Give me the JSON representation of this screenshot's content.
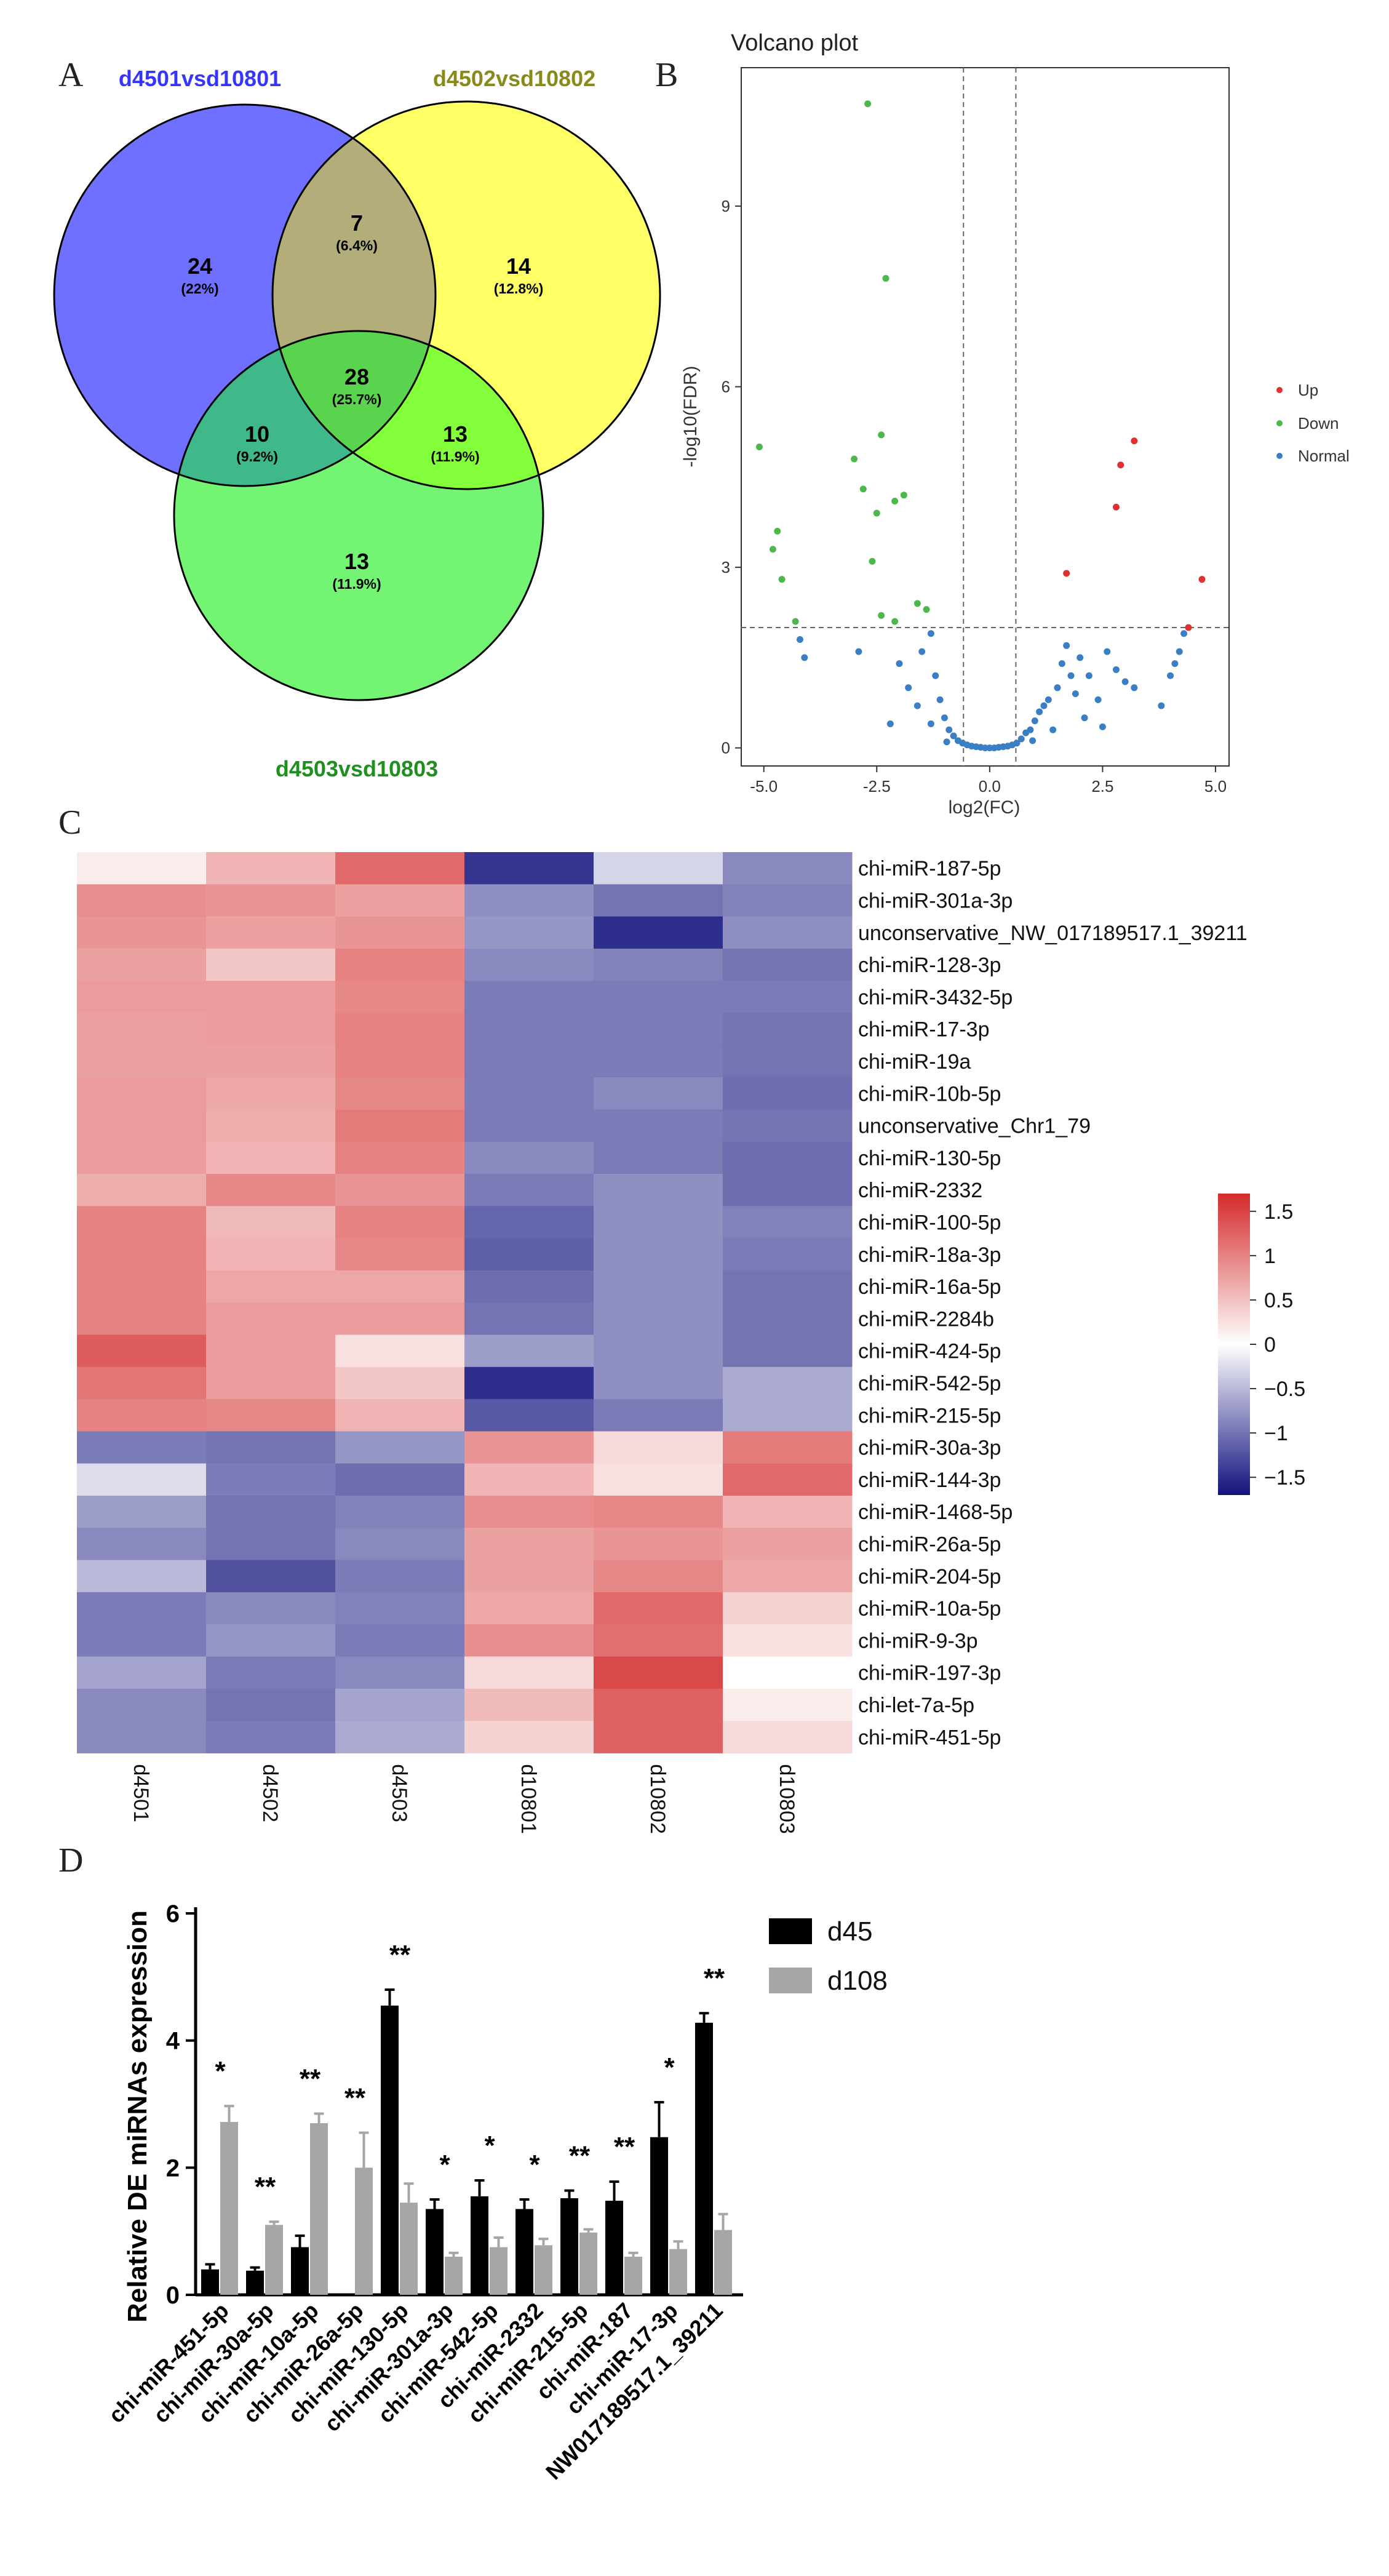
{
  "panels": {
    "a": "A",
    "b": "B",
    "c": "C",
    "d": "D"
  },
  "venn": {
    "sets": [
      {
        "name": "d4501vsd10801",
        "color": "#6f70ff",
        "title_color": "#3535ff"
      },
      {
        "name": "d4502vsd10802",
        "color": "#ffff66",
        "title_color": "#8a8a1a"
      },
      {
        "name": "d4503vsd10803",
        "color": "#73f573",
        "title_color": "#1f8f1f"
      }
    ],
    "regions": [
      {
        "id": "only_a",
        "count": "24",
        "pct": "(22%)"
      },
      {
        "id": "a_b",
        "count": "7",
        "pct": "(6.4%)"
      },
      {
        "id": "only_b",
        "count": "14",
        "pct": "(12.8%)"
      },
      {
        "id": "all",
        "count": "28",
        "pct": "(25.7%)"
      },
      {
        "id": "a_c",
        "count": "10",
        "pct": "(9.2%)"
      },
      {
        "id": "b_c",
        "count": "13",
        "pct": "(11.9%)"
      },
      {
        "id": "only_c",
        "count": "13",
        "pct": "(11.9%)"
      }
    ]
  },
  "chart_data": [
    {
      "type": "scatter",
      "title": "Volcano plot",
      "xlabel": "log2(FC)",
      "ylabel": "-log10(FDR)",
      "xlim": [
        -5.5,
        5.3
      ],
      "ylim": [
        -0.3,
        11.3
      ],
      "xticks": [
        "-5.0",
        "-2.5",
        "0.0",
        "2.5",
        "5.0"
      ],
      "yticks": [
        "0",
        "3",
        "6",
        "9"
      ],
      "thresholds": {
        "fc_lines": [
          -0.58,
          0.58
        ],
        "fdr_line": 2.0
      },
      "legend": [
        {
          "label": "Up",
          "color": "#e03030"
        },
        {
          "label": "Down",
          "color": "#4cb84c"
        },
        {
          "label": "Normal",
          "color": "#3a7fc4"
        }
      ],
      "series": [
        {
          "name": "Up",
          "color": "#e03030",
          "points": [
            [
              1.7,
              2.9
            ],
            [
              2.8,
              4.0
            ],
            [
              2.9,
              4.7
            ],
            [
              3.2,
              5.1
            ],
            [
              4.4,
              2.0
            ],
            [
              4.7,
              2.8
            ]
          ]
        },
        {
          "name": "Down",
          "color": "#4cb84c",
          "points": [
            [
              -2.7,
              10.7
            ],
            [
              -2.3,
              7.8
            ],
            [
              -5.1,
              5.0
            ],
            [
              -2.4,
              5.2
            ],
            [
              -3.0,
              4.8
            ],
            [
              -2.8,
              4.3
            ],
            [
              -1.9,
              4.2
            ],
            [
              -2.1,
              4.1
            ],
            [
              -2.5,
              3.9
            ],
            [
              -4.7,
              3.6
            ],
            [
              -4.8,
              3.3
            ],
            [
              -2.6,
              3.1
            ],
            [
              -4.6,
              2.8
            ],
            [
              -1.6,
              2.4
            ],
            [
              -1.4,
              2.3
            ],
            [
              -4.3,
              2.1
            ],
            [
              -2.4,
              2.2
            ],
            [
              -2.1,
              2.1
            ]
          ]
        },
        {
          "name": "Normal",
          "color": "#3a7fc4",
          "points": [
            [
              -4.2,
              1.8
            ],
            [
              -4.1,
              1.5
            ],
            [
              -2.9,
              1.6
            ],
            [
              -2.0,
              1.4
            ],
            [
              -1.3,
              1.9
            ],
            [
              -1.5,
              1.6
            ],
            [
              -1.2,
              1.2
            ],
            [
              -1.8,
              1.0
            ],
            [
              -1.1,
              0.8
            ],
            [
              -2.2,
              0.4
            ],
            [
              -1.0,
              0.5
            ],
            [
              -0.9,
              0.3
            ],
            [
              -0.8,
              0.2
            ],
            [
              -0.7,
              0.12
            ],
            [
              -0.6,
              0.08
            ],
            [
              -0.5,
              0.05
            ],
            [
              -0.4,
              0.03
            ],
            [
              -0.3,
              0.02
            ],
            [
              -0.2,
              0.01
            ],
            [
              -0.1,
              0.0
            ],
            [
              0.0,
              0.0
            ],
            [
              0.1,
              0.0
            ],
            [
              0.2,
              0.01
            ],
            [
              0.3,
              0.02
            ],
            [
              0.4,
              0.03
            ],
            [
              0.5,
              0.05
            ],
            [
              0.6,
              0.08
            ],
            [
              0.7,
              0.15
            ],
            [
              0.8,
              0.25
            ],
            [
              0.9,
              0.3
            ],
            [
              1.0,
              0.45
            ],
            [
              1.1,
              0.6
            ],
            [
              1.2,
              0.7
            ],
            [
              1.3,
              0.8
            ],
            [
              1.5,
              1.0
            ],
            [
              1.6,
              1.4
            ],
            [
              1.7,
              1.7
            ],
            [
              1.8,
              1.2
            ],
            [
              1.9,
              0.9
            ],
            [
              2.0,
              1.5
            ],
            [
              2.2,
              1.2
            ],
            [
              2.4,
              0.8
            ],
            [
              2.6,
              1.6
            ],
            [
              2.8,
              1.3
            ],
            [
              3.0,
              1.1
            ],
            [
              3.2,
              1.0
            ],
            [
              3.8,
              0.7
            ],
            [
              4.0,
              1.2
            ],
            [
              4.1,
              1.4
            ],
            [
              4.2,
              1.6
            ],
            [
              4.3,
              1.9
            ],
            [
              -1.6,
              0.7
            ],
            [
              -1.3,
              0.4
            ],
            [
              1.4,
              0.3
            ],
            [
              2.1,
              0.5
            ],
            [
              2.5,
              0.35
            ],
            [
              -0.95,
              0.1
            ],
            [
              0.95,
              0.12
            ]
          ]
        }
      ]
    },
    {
      "type": "heatmap",
      "columns": [
        "d4501",
        "d4502",
        "d4503",
        "d10801",
        "d10802",
        "d10803"
      ],
      "rows": [
        "chi-miR-187-5p",
        "chi-miR-301a-3p",
        "unconservative_NW_017189517.1_39211",
        "chi-miR-128-3p",
        "chi-miR-3432-5p",
        "chi-miR-17-3p",
        "chi-miR-19a",
        "chi-miR-10b-5p",
        "unconservative_Chr1_79",
        "chi-miR-130-5p",
        "chi-miR-2332",
        "chi-miR-100-5p",
        "chi-miR-18a-3p",
        "chi-miR-16a-5p",
        "chi-miR-2284b",
        "chi-miR-424-5p",
        "chi-miR-542-5p",
        "chi-miR-215-5p",
        "chi-miR-30a-3p",
        "chi-miR-144-3p",
        "chi-miR-1468-5p",
        "chi-miR-26a-5p",
        "chi-miR-204-5p",
        "chi-miR-10a-5p",
        "chi-miR-9-3p",
        "chi-miR-197-3p",
        "chi-let-7a-5p",
        "chi-miR-451-5p"
      ],
      "values": [
        [
          0.15,
          0.6,
          1.2,
          -1.45,
          -0.3,
          -0.85
        ],
        [
          0.9,
          0.85,
          0.75,
          -0.8,
          -1.0,
          -0.9
        ],
        [
          0.85,
          0.75,
          0.85,
          -0.75,
          -1.5,
          -0.8
        ],
        [
          0.75,
          0.45,
          1.0,
          -0.85,
          -0.9,
          -1.0
        ],
        [
          0.8,
          0.8,
          0.95,
          -0.95,
          -0.95,
          -0.95
        ],
        [
          0.75,
          0.8,
          1.0,
          -0.95,
          -0.95,
          -1.0
        ],
        [
          0.75,
          0.75,
          1.0,
          -0.95,
          -0.95,
          -1.0
        ],
        [
          0.8,
          0.7,
          0.95,
          -0.95,
          -0.85,
          -1.05
        ],
        [
          0.8,
          0.65,
          1.05,
          -0.95,
          -0.95,
          -1.0
        ],
        [
          0.8,
          0.6,
          1.0,
          -0.85,
          -0.95,
          -1.05
        ],
        [
          0.65,
          0.95,
          0.85,
          -0.95,
          -0.8,
          -1.05
        ],
        [
          1.0,
          0.55,
          1.0,
          -1.1,
          -0.8,
          -0.9
        ],
        [
          1.0,
          0.6,
          0.95,
          -1.15,
          -0.8,
          -0.95
        ],
        [
          1.0,
          0.7,
          0.7,
          -1.05,
          -0.8,
          -1.0
        ],
        [
          1.0,
          0.8,
          0.8,
          -1.0,
          -0.8,
          -1.0
        ],
        [
          1.3,
          0.8,
          0.25,
          -0.7,
          -0.8,
          -1.0
        ],
        [
          1.1,
          0.8,
          0.45,
          -1.5,
          -0.8,
          -0.6
        ],
        [
          1.0,
          0.95,
          0.6,
          -1.2,
          -0.95,
          -0.6
        ],
        [
          -0.95,
          -1.0,
          -0.75,
          0.85,
          0.3,
          1.05
        ],
        [
          -0.25,
          -0.95,
          -1.05,
          0.6,
          0.25,
          1.2
        ],
        [
          -0.7,
          -1.0,
          -0.9,
          0.9,
          0.95,
          0.6
        ],
        [
          -0.85,
          -1.0,
          -0.85,
          0.75,
          0.85,
          0.75
        ],
        [
          -0.5,
          -1.25,
          -0.95,
          0.75,
          0.95,
          0.7
        ],
        [
          -0.95,
          -0.85,
          -0.9,
          0.7,
          1.2,
          0.35
        ],
        [
          -0.95,
          -0.75,
          -0.95,
          0.9,
          1.15,
          0.25
        ],
        [
          -0.65,
          -0.95,
          -0.85,
          0.3,
          1.45,
          0.0
        ],
        [
          -0.85,
          -1.0,
          -0.65,
          0.55,
          1.25,
          0.15
        ],
        [
          -0.85,
          -0.95,
          -0.6,
          0.35,
          1.25,
          0.3
        ]
      ],
      "colorbar": {
        "min": -1.7,
        "max": 1.7,
        "ticks": [
          1.5,
          1,
          0.5,
          0,
          -0.5,
          -1,
          -1.5
        ],
        "tick_labels": [
          "1.5",
          "1",
          "0.5",
          "0",
          "−0.5",
          "−1",
          "−1.5"
        ]
      }
    },
    {
      "type": "bar",
      "ylabel": "Relative DE miRNAs expression",
      "ylim": [
        0,
        6
      ],
      "yticks": [
        "0",
        "2",
        "4",
        "6"
      ],
      "categories": [
        "chi-miR-451-5p",
        "chi-miR-30a-5p",
        "chi-miR-10a-5p",
        "chi-miR-26a-5p",
        "chi-miR-130-5p",
        "chi-miR-301a-3p",
        "chi-miR-542-5p",
        "chi-miR-2332",
        "chi-miR-215-5p",
        "chi-miR-187",
        "chi-miR-17-3p",
        "NW017189517.1_39211"
      ],
      "series": [
        {
          "name": "d45",
          "color": "#000000",
          "values": [
            0.4,
            0.38,
            0.75,
            0.0,
            4.55,
            1.35,
            1.55,
            1.35,
            1.52,
            1.48,
            2.48,
            4.28
          ],
          "errors": [
            0.08,
            0.05,
            0.18,
            0.0,
            0.25,
            0.15,
            0.25,
            0.15,
            0.12,
            0.3,
            0.55,
            0.15
          ]
        },
        {
          "name": "d108",
          "color": "#a6a6a6",
          "values": [
            2.72,
            1.1,
            2.7,
            2.0,
            1.45,
            0.6,
            0.75,
            0.78,
            0.98,
            0.6,
            0.72,
            1.02
          ],
          "errors": [
            0.25,
            0.05,
            0.15,
            0.55,
            0.3,
            0.06,
            0.15,
            0.1,
            0.05,
            0.06,
            0.12,
            0.25
          ]
        }
      ],
      "significance": [
        "*",
        "**",
        "**",
        "**",
        "**",
        "*",
        "*",
        "*",
        "**",
        "**",
        "*",
        "**"
      ],
      "legend": [
        "d45",
        "d108"
      ]
    }
  ]
}
